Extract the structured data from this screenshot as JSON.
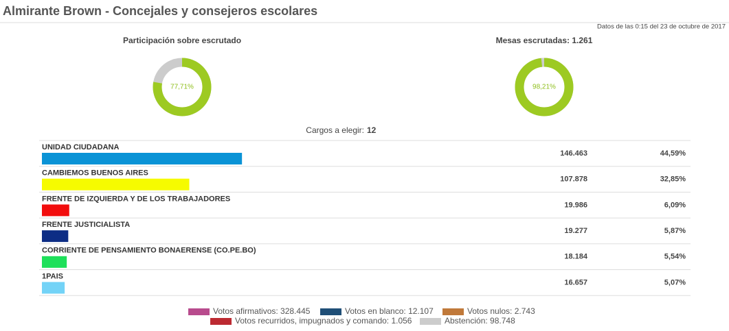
{
  "header": {
    "title": "Almirante Brown - Concejales y consejeros escolares",
    "timestamp": "Datos de las 0:15 del 23 de octubre de 2017"
  },
  "donuts": [
    {
      "title": "Participación sobre escrutado",
      "value": 77.71,
      "label": "77,71%",
      "color": "#9dca22"
    },
    {
      "title": "Mesas escrutadas: 1.261",
      "value": 98.21,
      "label": "98,21%",
      "color": "#9dca22"
    }
  ],
  "cargos": {
    "label": "Cargos a elegir:",
    "value": 12
  },
  "rows": [
    {
      "name": "UNIDAD CIUDADANA",
      "color": "#0a93d6",
      "votes": "146.463",
      "percent": {
        "value": 44.59,
        "label": "44,59%"
      }
    },
    {
      "name": "CAMBIEMOS BUENOS AIRES",
      "color": "#f6fb00",
      "votes": "107.878",
      "percent": {
        "value": 32.85,
        "label": "32,85%"
      }
    },
    {
      "name": "FRENTE DE IZQUIERDA Y DE LOS TRABAJADORES",
      "color": "#f20d0d",
      "votes": "19.986",
      "percent": {
        "value": 6.09,
        "label": "6,09%"
      }
    },
    {
      "name": "FRENTE JUSTICIALISTA",
      "color": "#0d2d85",
      "votes": "19.277",
      "percent": {
        "value": 5.87,
        "label": "5,87%"
      }
    },
    {
      "name": "CORRIENTE DE PENSAMIENTO BONAERENSE (CO.PE.BO)",
      "color": "#1ee05a",
      "votes": "18.184",
      "percent": {
        "value": 5.54,
        "label": "5,54%"
      }
    },
    {
      "name": "1PAIS",
      "color": "#73d3f7",
      "votes": "16.657",
      "percent": {
        "value": 5.07,
        "label": "5,07%"
      }
    }
  ],
  "legend": [
    {
      "label": "Votos afirmativos: 328.445",
      "color": "#b84b8d"
    },
    {
      "label": "Votos en blanco: 12.107",
      "color": "#1f4f77"
    },
    {
      "label": "Votos nulos: 2.743",
      "color": "#c0793a"
    },
    {
      "label": "Votos recurridos, impugnados y comando: 1.056",
      "color": "#bc2a32"
    },
    {
      "label": "Abstención: 98.748",
      "color": "#cccccc"
    }
  ]
}
